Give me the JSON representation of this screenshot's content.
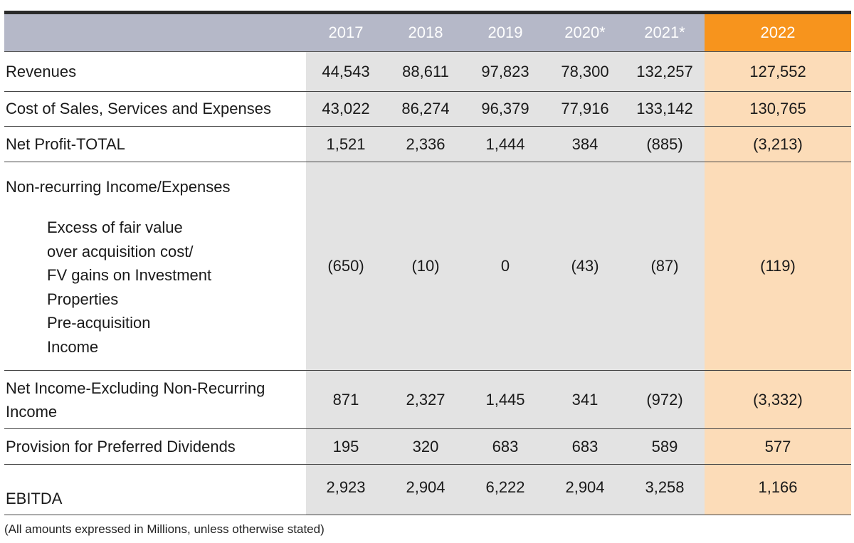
{
  "table": {
    "years": [
      "2017",
      "2018",
      "2019",
      "2020*",
      "2021*",
      "2022"
    ],
    "rows": [
      {
        "label": "Revenues",
        "values": [
          "44,543",
          "88,611",
          "97,823",
          "78,300",
          "132,257",
          "127,552"
        ]
      },
      {
        "label": "Cost of Sales, Services and Expenses",
        "values": [
          "43,022",
          "86,274",
          "96,379",
          "77,916",
          "133,142",
          "130,765"
        ]
      },
      {
        "label": "Net Profit-TOTAL",
        "values": [
          "1,521",
          "2,336",
          "1,444",
          "384",
          "(885)",
          "(3,213)"
        ]
      },
      {
        "label": "Non-recurring Income/Expenses",
        "sublines": [
          "Excess of fair value",
          "over acquisition cost/",
          "FV gains on Investment",
          "Properties",
          "Pre-acquisition",
          "Income"
        ],
        "values": [
          "(650)",
          "(10)",
          "0",
          "(43)",
          "(87)",
          "(119)"
        ]
      },
      {
        "label_lines": [
          "Net Income-Excluding Non-Recurring",
          "Income"
        ],
        "values": [
          "871",
          "2,327",
          "1,445",
          "341",
          "(972)",
          "(3,332)"
        ]
      },
      {
        "label": "Provision for Preferred Dividends",
        "values": [
          "195",
          "320",
          "683",
          "683",
          "589",
          "577"
        ]
      },
      {
        "label": "EBITDA",
        "values": [
          "2,923",
          "2,904",
          "6,222",
          "2,904",
          "3,258",
          "1,166"
        ]
      }
    ]
  },
  "footnote": "(All amounts expressed in Millions, unless otherwise stated)",
  "colors": {
    "header_bg": "#b5b8c8",
    "highlight_header": "#f7941d",
    "highlight_cell": "#fcdcb8",
    "year_cell": "#e3e3e3"
  }
}
